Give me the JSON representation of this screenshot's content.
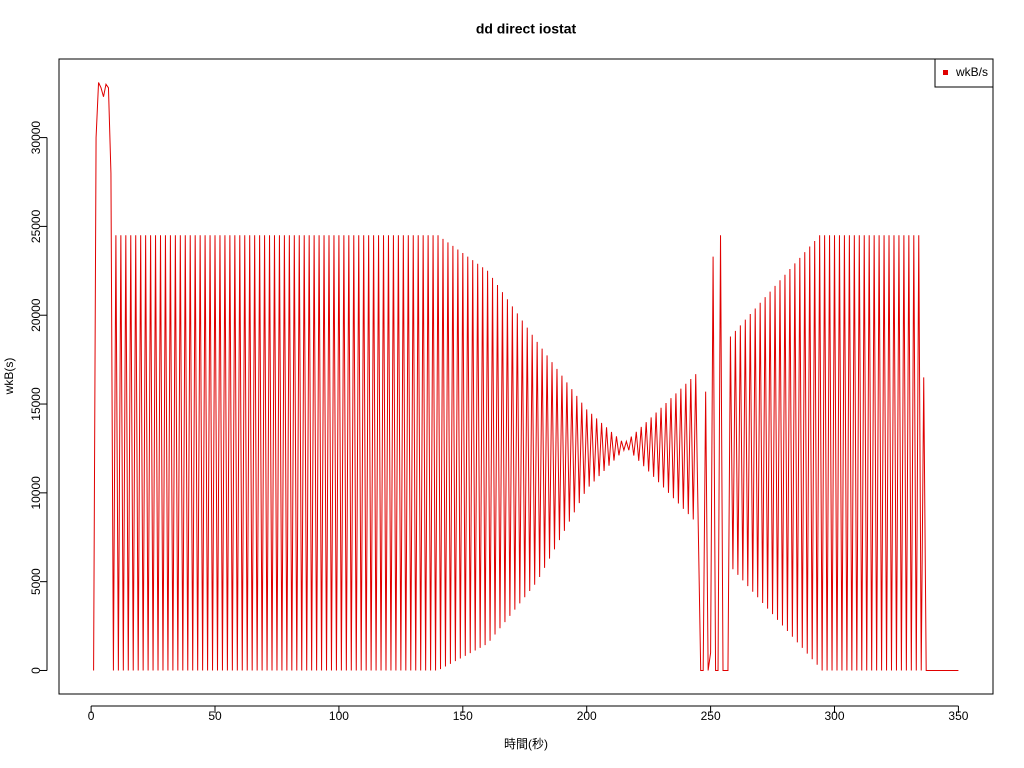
{
  "chart_data": {
    "type": "line",
    "title": "dd direct iostat",
    "x_label": "時間(秒)",
    "y_label": "wkB(s)",
    "legend_position": "top-right",
    "xlim": [
      -12.96,
      363.96
    ],
    "ylim": [
      -1324,
      34424
    ],
    "xticks": [
      0,
      50,
      100,
      150,
      200,
      250,
      300,
      350
    ],
    "yticks": [
      0,
      5000,
      10000,
      15000,
      20000,
      25000,
      30000
    ],
    "x": [
      1,
      2,
      3,
      4,
      5,
      6,
      7,
      8,
      9,
      10,
      11,
      12,
      13,
      14,
      15,
      16,
      17,
      18,
      19,
      20,
      21,
      22,
      23,
      24,
      25,
      26,
      27,
      28,
      29,
      30,
      31,
      32,
      33,
      34,
      35,
      36,
      37,
      38,
      39,
      40,
      41,
      42,
      43,
      44,
      45,
      46,
      47,
      48,
      49,
      50,
      51,
      52,
      53,
      54,
      55,
      56,
      57,
      58,
      59,
      60,
      61,
      62,
      63,
      64,
      65,
      66,
      67,
      68,
      69,
      70,
      71,
      72,
      73,
      74,
      75,
      76,
      77,
      78,
      79,
      80,
      81,
      82,
      83,
      84,
      85,
      86,
      87,
      88,
      89,
      90,
      91,
      92,
      93,
      94,
      95,
      96,
      97,
      98,
      99,
      100,
      101,
      102,
      103,
      104,
      105,
      106,
      107,
      108,
      109,
      110,
      111,
      112,
      113,
      114,
      115,
      116,
      117,
      118,
      119,
      120,
      121,
      122,
      123,
      124,
      125,
      126,
      127,
      128,
      129,
      130,
      131,
      132,
      133,
      134,
      135,
      136,
      137,
      138,
      139,
      140,
      141,
      142,
      143,
      144,
      145,
      146,
      147,
      148,
      149,
      150,
      151,
      152,
      153,
      154,
      155,
      156,
      157,
      158,
      159,
      160,
      161,
      162,
      163,
      164,
      165,
      166,
      167,
      168,
      169,
      170,
      171,
      172,
      173,
      174,
      175,
      176,
      177,
      178,
      179,
      180,
      181,
      182,
      183,
      184,
      185,
      186,
      187,
      188,
      189,
      190,
      191,
      192,
      193,
      194,
      195,
      196,
      197,
      198,
      199,
      200,
      201,
      202,
      203,
      204,
      205,
      206,
      207,
      208,
      209,
      210,
      211,
      212,
      213,
      214,
      215,
      216,
      217,
      218,
      219,
      220,
      221,
      222,
      223,
      224,
      225,
      226,
      227,
      228,
      229,
      230,
      231,
      232,
      233,
      234,
      235,
      236,
      237,
      238,
      239,
      240,
      241,
      242,
      243,
      244,
      245,
      246,
      247,
      248,
      249,
      250,
      251,
      252,
      253,
      254,
      255,
      256,
      257,
      258,
      259,
      260,
      261,
      262,
      263,
      264,
      265,
      266,
      267,
      268,
      269,
      270,
      271,
      272,
      273,
      274,
      275,
      276,
      277,
      278,
      279,
      280,
      281,
      282,
      283,
      284,
      285,
      286,
      287,
      288,
      289,
      290,
      291,
      292,
      293,
      294,
      295,
      296,
      297,
      298,
      299,
      300,
      301,
      302,
      303,
      304,
      305,
      306,
      307,
      308,
      309,
      310,
      311,
      312,
      313,
      314,
      315,
      316,
      317,
      318,
      319,
      320,
      321,
      322,
      323,
      324,
      325,
      326,
      327,
      328,
      329,
      330,
      331,
      332,
      333,
      334,
      335,
      336,
      337,
      338,
      339,
      340,
      341,
      342,
      343,
      344,
      345,
      346,
      347,
      348,
      349,
      350
    ],
    "series": [
      {
        "name": "wkB/s",
        "color": "#e00000",
        "values": [
          0,
          30000,
          33100,
          32800,
          32300,
          33000,
          32800,
          28000,
          0,
          24500,
          0,
          24500,
          0,
          24500,
          0,
          24500,
          0,
          24500,
          0,
          24500,
          0,
          24500,
          0,
          24500,
          0,
          24500,
          0,
          24500,
          0,
          24500,
          0,
          24500,
          0,
          24500,
          0,
          24500,
          0,
          24500,
          0,
          24500,
          0,
          24500,
          0,
          24500,
          0,
          24500,
          0,
          24500,
          0,
          24500,
          0,
          24500,
          0,
          24500,
          0,
          24500,
          0,
          24500,
          0,
          24500,
          0,
          24500,
          0,
          24500,
          0,
          24500,
          0,
          24500,
          0,
          24500,
          0,
          24500,
          0,
          24500,
          0,
          24500,
          0,
          24500,
          0,
          24500,
          0,
          24500,
          0,
          24500,
          0,
          24500,
          0,
          24500,
          0,
          24500,
          0,
          24500,
          0,
          24500,
          0,
          24500,
          0,
          24500,
          0,
          24500,
          0,
          24500,
          0,
          24500,
          0,
          24500,
          0,
          24500,
          0,
          24500,
          0,
          24500,
          0,
          24500,
          0,
          24500,
          0,
          24500,
          0,
          24500,
          0,
          24500,
          0,
          24500,
          0,
          24500,
          0,
          24500,
          0,
          24500,
          0,
          24500,
          0,
          24500,
          0,
          24500,
          0,
          24500,
          0,
          24500,
          75,
          24300,
          225,
          24100,
          375,
          23900,
          525,
          23700,
          675,
          23500,
          825,
          23300,
          975,
          23100,
          1125,
          22900,
          1275,
          22700,
          1425,
          22500,
          1675,
          22100,
          2025,
          21700,
          2375,
          21300,
          2725,
          20900,
          3075,
          20500,
          3425,
          20100,
          3775,
          19700,
          4125,
          19300,
          4475,
          18900,
          4825,
          18500,
          5260,
          18120,
          5780,
          17740,
          6300,
          17360,
          6820,
          16980,
          7340,
          16600,
          7860,
          16220,
          8380,
          15840,
          8900,
          15460,
          9420,
          15080,
          9940,
          14700,
          10350,
          14450,
          10640,
          14190,
          10940,
          13940,
          11230,
          13690,
          11530,
          13430,
          11820,
          13180,
          12110,
          12930,
          12400,
          12900,
          12400,
          13170,
          12100,
          13440,
          11800,
          13710,
          11500,
          13980,
          11200,
          14250,
          10900,
          14520,
          10600,
          14790,
          10300,
          15060,
          10000,
          15330,
          9700,
          15600,
          9400,
          15870,
          9100,
          16140,
          8800,
          16410,
          8500,
          16680,
          8200,
          0,
          0,
          15700,
          0,
          1000,
          23300,
          0,
          0,
          24500,
          0,
          0,
          0,
          18800,
          5700,
          19120,
          5380,
          19430,
          5070,
          19750,
          4750,
          20070,
          4430,
          20380,
          4120,
          20700,
          3800,
          21020,
          3480,
          21330,
          3170,
          21650,
          2850,
          21970,
          2530,
          22280,
          2220,
          22600,
          1900,
          22920,
          1580,
          23230,
          1270,
          23550,
          950,
          23870,
          630,
          24180,
          320,
          24500,
          0,
          24500,
          0,
          24500,
          0,
          24500,
          0,
          24500,
          0,
          24500,
          0,
          24500,
          0,
          24500,
          0,
          24500,
          0,
          24500,
          0,
          24500,
          0,
          24500,
          0,
          24500,
          0,
          24500,
          0,
          24500,
          0,
          24500,
          0,
          24500,
          0,
          24500,
          0,
          24500,
          0,
          24500,
          0,
          24500,
          0,
          16500,
          0,
          0,
          0,
          0,
          0,
          0,
          0,
          0,
          0,
          0,
          0,
          0,
          0,
          0
        ]
      }
    ]
  }
}
